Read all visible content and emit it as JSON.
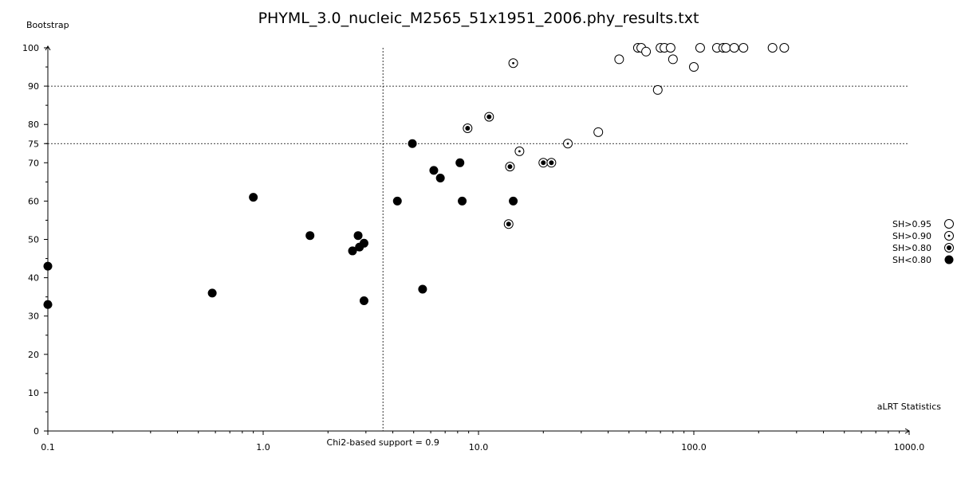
{
  "chart_data": {
    "type": "scatter",
    "title": "PHYML_3.0_nucleic_M2565_51x1951_2006.phy_results.txt",
    "xlabel": "aLRT Statistics",
    "ylabel": "Bootstrap",
    "xscale": "log",
    "xlim": [
      0.1,
      1000.0
    ],
    "ylim": [
      0,
      100
    ],
    "x_tick_labels": [
      "0.1",
      "1.0",
      "10.0",
      "100.0",
      "1000.0"
    ],
    "y_tick_labels": [
      "0",
      "10",
      "20",
      "30",
      "40",
      "50",
      "60",
      "70",
      "75",
      "80",
      "90",
      "100"
    ],
    "reference_lines": {
      "horizontal": [
        90,
        75
      ],
      "vertical": [
        {
          "x": 3.6,
          "label": "Chi2-based support = 0.9"
        }
      ]
    },
    "legend_position": "right",
    "series": [
      {
        "name": "SH>0.95",
        "marker": "open",
        "points": [
          [
            45,
            97
          ],
          [
            55,
            100
          ],
          [
            57,
            100
          ],
          [
            60,
            99
          ],
          [
            70,
            100
          ],
          [
            73,
            100
          ],
          [
            78,
            100
          ],
          [
            80,
            97
          ],
          [
            68,
            89
          ],
          [
            100,
            95
          ],
          [
            107,
            100
          ],
          [
            128,
            100
          ],
          [
            137,
            100
          ],
          [
            141,
            100
          ],
          [
            154,
            100
          ],
          [
            170,
            100
          ],
          [
            232,
            100
          ],
          [
            263,
            100
          ],
          [
            36,
            78
          ]
        ]
      },
      {
        "name": "SH>0.90",
        "marker": "dot",
        "points": [
          [
            14.5,
            96
          ],
          [
            15.5,
            73
          ],
          [
            26,
            75
          ]
        ]
      },
      {
        "name": "SH>0.80",
        "marker": "bullseye",
        "points": [
          [
            11.2,
            82
          ],
          [
            8.9,
            79
          ],
          [
            14.0,
            69
          ],
          [
            20,
            70
          ],
          [
            21.8,
            70
          ],
          [
            13.8,
            54
          ]
        ]
      },
      {
        "name": "SH<0.80",
        "marker": "filled",
        "points": [
          [
            0.1,
            43
          ],
          [
            0.1,
            33
          ],
          [
            0.58,
            36
          ],
          [
            0.9,
            61
          ],
          [
            1.65,
            51
          ],
          [
            2.6,
            47
          ],
          [
            2.76,
            51
          ],
          [
            2.8,
            48
          ],
          [
            2.94,
            49
          ],
          [
            2.94,
            34
          ],
          [
            4.2,
            60
          ],
          [
            4.93,
            75
          ],
          [
            5.5,
            37
          ],
          [
            6.2,
            68
          ],
          [
            6.65,
            66
          ],
          [
            8.2,
            70
          ],
          [
            8.4,
            60
          ],
          [
            14.5,
            60
          ]
        ]
      }
    ]
  }
}
